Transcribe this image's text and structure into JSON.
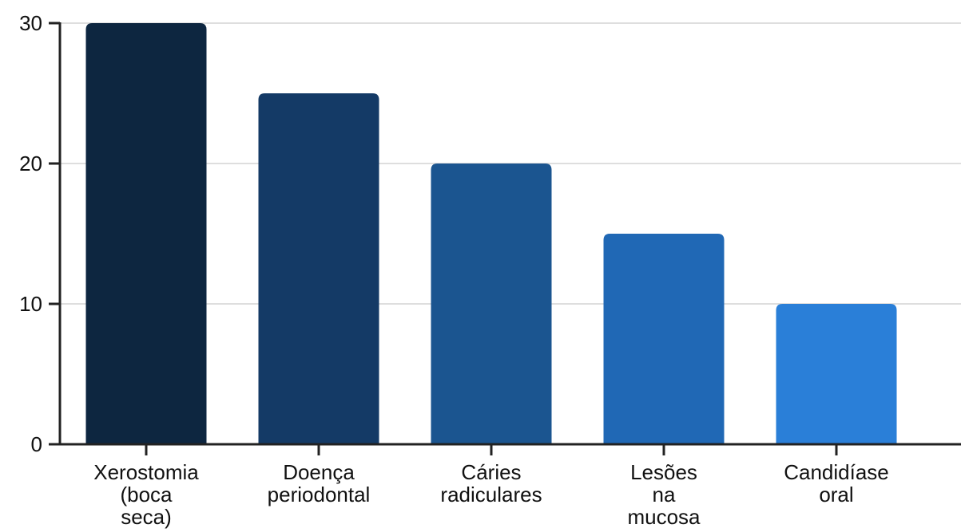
{
  "chart_data": {
    "type": "bar",
    "categories": [
      [
        "Xerostomia",
        "(boca",
        "seca)"
      ],
      [
        "Doença",
        "periodontal"
      ],
      [
        "Cáries",
        "radiculares"
      ],
      [
        "Lesões",
        "na",
        "mucosa"
      ],
      [
        "Candidíase",
        "oral"
      ]
    ],
    "values": [
      30,
      25,
      20,
      15,
      10
    ],
    "bar_colors": [
      "#0d2640",
      "#143a66",
      "#1b5590",
      "#2068b5",
      "#2a7fd8"
    ],
    "ylim": [
      0,
      30
    ],
    "yticks": [
      0,
      10,
      20,
      30
    ],
    "ytick_labels": [
      "0",
      "10",
      "20",
      "30"
    ],
    "grid": true,
    "title": "",
    "xlabel": "",
    "ylabel": ""
  }
}
